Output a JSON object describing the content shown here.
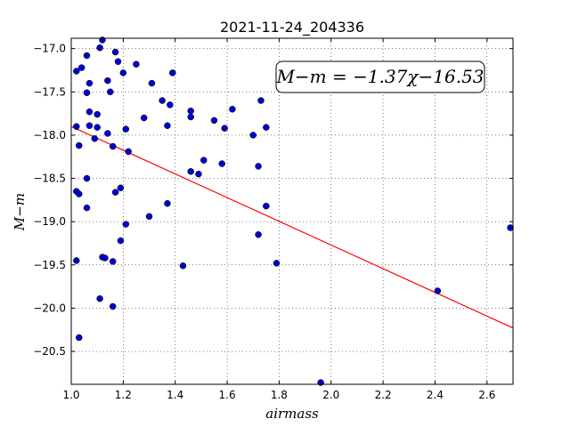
{
  "chart_data": {
    "type": "scatter",
    "title": "2021-11-24_204336",
    "xlabel": "airmass",
    "ylabel": "M−m",
    "xlim": [
      1.0,
      2.7
    ],
    "ylim": [
      -20.88,
      -16.88
    ],
    "xticks": [
      1.0,
      1.2,
      1.4,
      1.6,
      1.8,
      2.0,
      2.2,
      2.4,
      2.6
    ],
    "xtick_labels": [
      "1.0",
      "1.2",
      "1.4",
      "1.6",
      "1.8",
      "2.0",
      "2.2",
      "2.4",
      "2.6"
    ],
    "yticks": [
      -17.0,
      -17.5,
      -18.0,
      -18.5,
      -19.0,
      -19.5,
      -20.0,
      -20.5
    ],
    "ytick_labels": [
      "−17.0",
      "−17.5",
      "−18.0",
      "−18.5",
      "−19.0",
      "−19.5",
      "−20.0",
      "−20.5"
    ],
    "grid": true,
    "annotation": "M−m = −1.37χ−16.53",
    "fit_line": {
      "slope": -1.37,
      "intercept": -16.53,
      "color": "#ff0000"
    },
    "point_color": "#0000cc",
    "points": [
      [
        1.12,
        -16.9
      ],
      [
        1.11,
        -16.99
      ],
      [
        1.17,
        -17.04
      ],
      [
        1.06,
        -17.08
      ],
      [
        1.25,
        -17.18
      ],
      [
        1.18,
        -17.15
      ],
      [
        1.04,
        -17.22
      ],
      [
        1.02,
        -17.26
      ],
      [
        1.2,
        -17.28
      ],
      [
        1.39,
        -17.28
      ],
      [
        1.14,
        -17.37
      ],
      [
        1.07,
        -17.4
      ],
      [
        1.31,
        -17.4
      ],
      [
        1.06,
        -17.51
      ],
      [
        1.15,
        -17.5
      ],
      [
        1.35,
        -17.6
      ],
      [
        1.73,
        -17.6
      ],
      [
        1.38,
        -17.65
      ],
      [
        1.46,
        -17.72
      ],
      [
        1.62,
        -17.7
      ],
      [
        1.07,
        -17.73
      ],
      [
        1.1,
        -17.76
      ],
      [
        1.46,
        -17.79
      ],
      [
        1.28,
        -17.8
      ],
      [
        1.55,
        -17.83
      ],
      [
        1.02,
        -17.9
      ],
      [
        1.07,
        -17.89
      ],
      [
        1.1,
        -17.91
      ],
      [
        1.37,
        -17.89
      ],
      [
        1.59,
        -17.92
      ],
      [
        1.75,
        -17.91
      ],
      [
        1.21,
        -17.93
      ],
      [
        1.14,
        -17.98
      ],
      [
        1.7,
        -18.0
      ],
      [
        1.09,
        -18.04
      ],
      [
        1.03,
        -18.12
      ],
      [
        1.16,
        -18.13
      ],
      [
        1.22,
        -18.19
      ],
      [
        1.51,
        -18.29
      ],
      [
        1.58,
        -18.33
      ],
      [
        1.72,
        -18.36
      ],
      [
        1.46,
        -18.42
      ],
      [
        1.49,
        -18.45
      ],
      [
        1.06,
        -18.5
      ],
      [
        1.19,
        -18.61
      ],
      [
        1.02,
        -18.65
      ],
      [
        1.03,
        -18.68
      ],
      [
        1.17,
        -18.66
      ],
      [
        1.37,
        -18.79
      ],
      [
        1.75,
        -18.82
      ],
      [
        1.06,
        -18.84
      ],
      [
        1.3,
        -18.94
      ],
      [
        1.21,
        -19.03
      ],
      [
        2.69,
        -19.07
      ],
      [
        1.72,
        -19.15
      ],
      [
        1.19,
        -19.22
      ],
      [
        1.12,
        -19.41
      ],
      [
        1.13,
        -19.42
      ],
      [
        1.02,
        -19.45
      ],
      [
        1.16,
        -19.46
      ],
      [
        1.79,
        -19.48
      ],
      [
        1.43,
        -19.51
      ],
      [
        2.41,
        -19.8
      ],
      [
        1.11,
        -19.89
      ],
      [
        1.16,
        -19.98
      ],
      [
        1.03,
        -20.34
      ],
      [
        1.96,
        -20.86
      ]
    ]
  }
}
